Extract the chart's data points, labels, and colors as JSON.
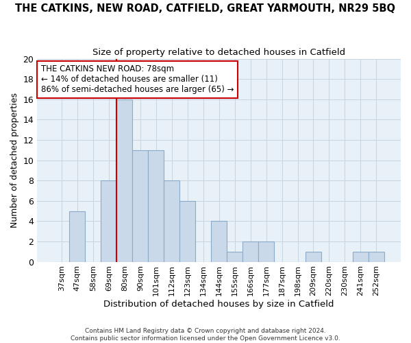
{
  "title": "THE CATKINS, NEW ROAD, CATFIELD, GREAT YARMOUTH, NR29 5BQ",
  "subtitle": "Size of property relative to detached houses in Catfield",
  "xlabel": "Distribution of detached houses by size in Catfield",
  "ylabel": "Number of detached properties",
  "footer_line1": "Contains HM Land Registry data © Crown copyright and database right 2024.",
  "footer_line2": "Contains public sector information licensed under the Open Government Licence v3.0.",
  "bin_labels": [
    "37sqm",
    "47sqm",
    "58sqm",
    "69sqm",
    "80sqm",
    "90sqm",
    "101sqm",
    "112sqm",
    "123sqm",
    "134sqm",
    "144sqm",
    "155sqm",
    "166sqm",
    "177sqm",
    "187sqm",
    "198sqm",
    "209sqm",
    "220sqm",
    "230sqm",
    "241sqm",
    "252sqm"
  ],
  "bar_values": [
    0,
    5,
    0,
    8,
    16,
    11,
    11,
    8,
    6,
    0,
    4,
    1,
    2,
    2,
    0,
    0,
    1,
    0,
    0,
    1,
    1
  ],
  "bar_color": "#c9d9ea",
  "bar_edgecolor": "#8baac8",
  "vline_index": 4,
  "vline_color": "#cc0000",
  "annotation_text": "THE CATKINS NEW ROAD: 78sqm\n← 14% of detached houses are smaller (11)\n86% of semi-detached houses are larger (65) →",
  "annotation_box_edgecolor": "#cc0000",
  "ylim": [
    0,
    20
  ],
  "yticks": [
    0,
    2,
    4,
    6,
    8,
    10,
    12,
    14,
    16,
    18,
    20
  ],
  "grid_color": "#c8d4de",
  "background_color": "#e8f0f8",
  "title_fontsize": 10.5,
  "subtitle_fontsize": 9.5,
  "ylabel_fontsize": 9,
  "xlabel_fontsize": 9.5,
  "annotation_fontsize": 8.5,
  "ytick_fontsize": 9,
  "xtick_fontsize": 8
}
